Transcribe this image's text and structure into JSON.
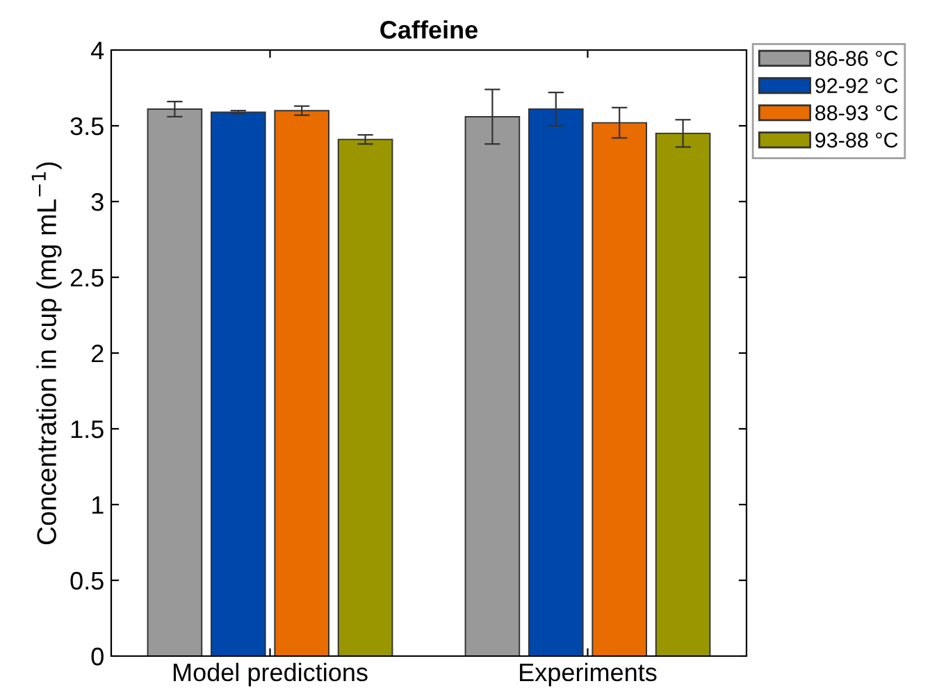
{
  "chart_data": {
    "type": "bar",
    "title": "Caffeine",
    "ylabel": "Concentration in cup (mg mL$^{−1}$)",
    "categories": [
      "Model predictions",
      "Experiments"
    ],
    "series": [
      {
        "name": "86-86 °C",
        "color": "#999999",
        "values": [
          3.61,
          3.56
        ],
        "errors": [
          0.05,
          0.18
        ]
      },
      {
        "name": "92-92 °C",
        "color": "#0047ab",
        "values": [
          3.59,
          3.61
        ],
        "errors": [
          0.01,
          0.11
        ]
      },
      {
        "name": "88-93 °C",
        "color": "#e86c00",
        "values": [
          3.6,
          3.52
        ],
        "errors": [
          0.03,
          0.1
        ]
      },
      {
        "name": "93-88 °C",
        "color": "#9a9600",
        "values": [
          3.41,
          3.45
        ],
        "errors": [
          0.03,
          0.09
        ]
      }
    ],
    "ylim": [
      0,
      4
    ],
    "yticks": [
      0,
      0.5,
      1,
      1.5,
      2,
      2.5,
      3,
      3.5,
      4
    ],
    "grid": false,
    "legend": "top right"
  }
}
